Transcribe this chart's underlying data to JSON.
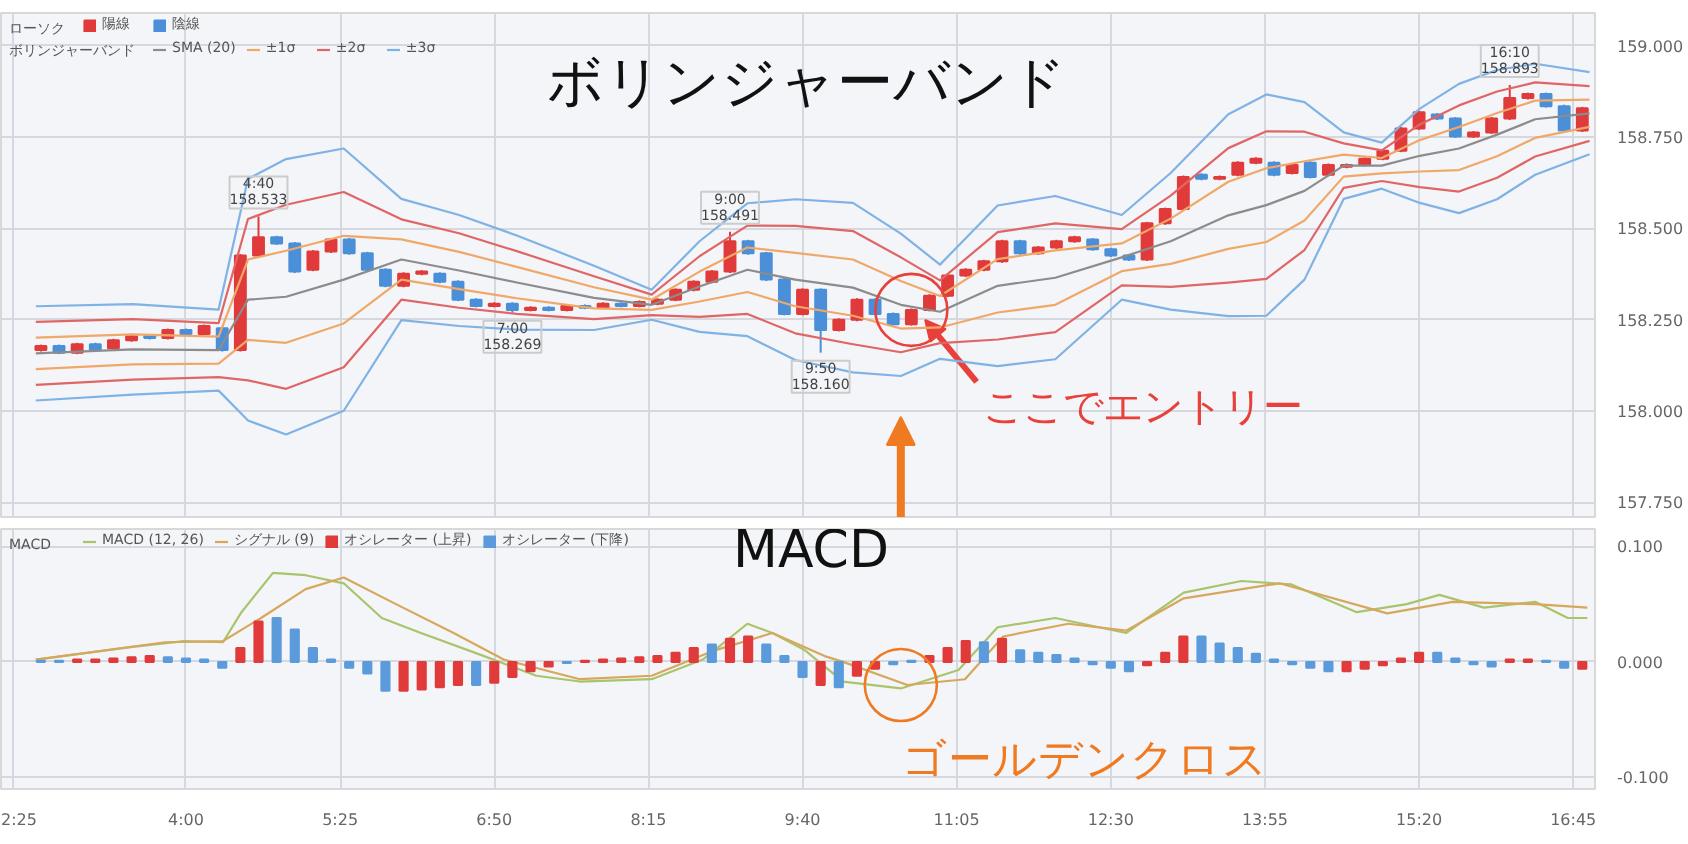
{
  "chart_data": [
    {
      "type": "candlestick",
      "title": "ボリンジャーバンド",
      "legend_title": [
        "ローソク",
        "ボリンジャーバンド"
      ],
      "legend": "top left",
      "grid": true,
      "tick_labels": "y",
      "xlim": [
        2.3,
        16.95
      ],
      "xticks": [
        {
          "value": 2.4167,
          "label": null
        },
        {
          "value": 4,
          "label": null
        },
        {
          "value": 5.4167,
          "label": null
        },
        {
          "value": 6.8333,
          "label": null
        },
        {
          "value": 8.25,
          "label": null
        },
        {
          "value": 9.6667,
          "label": null
        },
        {
          "value": 11.0833,
          "label": null
        },
        {
          "value": 12.5,
          "label": null
        },
        {
          "value": 13.9167,
          "label": null
        },
        {
          "value": 15.3333,
          "label": null
        },
        {
          "value": 16.75,
          "label": null
        }
      ],
      "ylim": [
        157.71,
        159.09
      ],
      "yticks": [
        {
          "value": 159,
          "label": "159.000"
        },
        {
          "value": 158.75,
          "label": "158.750"
        },
        {
          "value": 158.5,
          "label": "158.500"
        },
        {
          "value": 158.25,
          "label": "158.250"
        },
        {
          "value": 158,
          "label": "158.000"
        },
        {
          "value": 157.75,
          "label": "157.750"
        }
      ],
      "x": [
        2.62,
        3.51,
        4.3,
        4.57,
        4.92,
        5.45,
        5.98,
        6.51,
        7.04,
        7.75,
        8.28,
        8.72,
        9.16,
        9.6,
        10.13,
        10.57,
        10.93,
        11.46,
        11.99,
        12.6,
        13.05,
        13.58,
        13.93,
        14.28,
        14.64,
        14.99,
        15.34,
        15.7,
        16.05,
        16.4,
        16.9
      ],
      "series": [
        {
          "name": "陽線",
          "color": "#e03a3a",
          "x": [
            2.6667,
            3,
            3.3333,
            3.5,
            3.8333,
            4.1667,
            4.5,
            4.6667,
            5.1667,
            5.3333,
            6,
            6.1667,
            6.8333,
            7.1667,
            7.5,
            7.8333,
            8.1667,
            8.3333,
            8.5,
            8.6667,
            8.8333,
            9,
            9.6667,
            10,
            10.1667,
            10.6667,
            10.8333,
            11,
            11.1667,
            11.3333,
            11.5,
            11.8333,
            12,
            12.1667,
            12.8333,
            13,
            13.1667,
            13.5,
            13.6667,
            13.8333,
            14.1667,
            14.5,
            14.6667,
            14.8333,
            15,
            15.1667,
            15.3333,
            15.8333,
            16,
            16.1667,
            16.3333,
            16.8333
          ],
          "ohlc": [
            [
              158.167,
              158.182,
              158.163,
              158.178
            ],
            [
              158.16,
              158.187,
              158.156,
              158.183
            ],
            [
              158.172,
              158.198,
              158.168,
              158.194
            ],
            [
              158.194,
              158.209,
              158.19,
              158.205
            ],
            [
              158.2,
              158.226,
              158.196,
              158.222
            ],
            [
              158.211,
              158.237,
              158.207,
              158.233
            ],
            [
              158.167,
              158.43,
              158.163,
              158.426
            ],
            [
              158.426,
              158.533,
              158.422,
              158.476
            ],
            [
              158.387,
              158.441,
              158.383,
              158.437
            ],
            [
              158.437,
              158.474,
              158.433,
              158.47
            ],
            [
              158.343,
              158.38,
              158.339,
              158.376
            ],
            [
              158.376,
              158.386,
              158.372,
              158.382
            ],
            [
              158.288,
              158.298,
              158.284,
              158.294
            ],
            [
              158.277,
              158.287,
              158.273,
              158.283
            ],
            [
              158.277,
              158.292,
              158.273,
              158.288
            ],
            [
              158.283,
              158.298,
              158.279,
              158.294
            ],
            [
              158.288,
              158.303,
              158.284,
              158.299
            ],
            [
              158.294,
              158.309,
              158.29,
              158.305
            ],
            [
              158.305,
              158.336,
              158.301,
              158.332
            ],
            [
              158.332,
              158.358,
              158.328,
              158.354
            ],
            [
              158.354,
              158.386,
              158.35,
              158.382
            ],
            [
              158.382,
              158.491,
              158.378,
              158.465
            ],
            [
              158.266,
              158.336,
              158.262,
              158.332
            ],
            [
              158.222,
              158.254,
              158.218,
              158.25
            ],
            [
              158.25,
              158.309,
              158.246,
              158.305
            ],
            [
              158.238,
              158.281,
              158.234,
              158.277
            ],
            [
              158.277,
              158.32,
              158.273,
              158.316
            ],
            [
              158.316,
              158.375,
              158.312,
              158.371
            ],
            [
              158.371,
              158.391,
              158.367,
              158.387
            ],
            [
              158.387,
              158.414,
              158.383,
              158.41
            ],
            [
              158.41,
              158.469,
              158.406,
              158.465
            ],
            [
              158.432,
              158.452,
              158.428,
              158.448
            ],
            [
              158.448,
              158.469,
              158.444,
              158.465
            ],
            [
              158.465,
              158.48,
              158.461,
              158.476
            ],
            [
              158.415,
              158.518,
              158.411,
              158.514
            ],
            [
              158.514,
              158.557,
              158.51,
              158.553
            ],
            [
              158.553,
              158.645,
              158.549,
              158.641
            ],
            [
              158.636,
              158.645,
              158.632,
              158.641
            ],
            [
              158.647,
              158.684,
              158.643,
              158.68
            ],
            [
              158.68,
              158.695,
              158.676,
              158.691
            ],
            [
              158.652,
              158.678,
              158.648,
              158.674
            ],
            [
              158.647,
              158.678,
              158.643,
              158.674
            ],
            [
              158.669,
              158.678,
              158.665,
              158.674
            ],
            [
              158.674,
              158.695,
              158.67,
              158.691
            ],
            [
              158.691,
              158.717,
              158.687,
              158.713
            ],
            [
              158.713,
              158.778,
              158.709,
              158.774
            ],
            [
              158.774,
              158.822,
              158.77,
              158.818
            ],
            [
              158.752,
              158.767,
              158.748,
              158.763
            ],
            [
              158.763,
              158.805,
              158.759,
              158.801
            ],
            [
              158.801,
              158.893,
              158.797,
              158.857
            ],
            [
              158.857,
              158.872,
              158.853,
              158.868
            ],
            [
              158.768,
              158.833,
              158.764,
              158.829
            ]
          ]
        },
        {
          "name": "陰線",
          "color": "#4a8fd8",
          "x": [
            2.8333,
            3.1667,
            3.6667,
            4,
            4.3333,
            4.8333,
            5,
            5.5,
            5.6667,
            5.8333,
            6.3333,
            6.5,
            6.6667,
            7,
            7.3333,
            7.6667,
            8,
            9.1667,
            9.3333,
            9.5,
            9.8333,
            10.3333,
            10.5,
            11.6667,
            12.3333,
            12.5,
            12.6667,
            13.3333,
            14,
            14.3333,
            15.5,
            15.6667,
            16.5,
            16.6667
          ],
          "ohlc": [
            [
              158.178,
              158.182,
              158.156,
              158.16
            ],
            [
              158.183,
              158.187,
              158.163,
              158.167
            ],
            [
              158.205,
              158.209,
              158.196,
              158.2
            ],
            [
              158.222,
              158.226,
              158.207,
              158.211
            ],
            [
              158.227,
              158.231,
              158.163,
              158.167
            ],
            [
              158.476,
              158.48,
              158.455,
              158.459
            ],
            [
              158.459,
              158.463,
              158.378,
              158.382
            ],
            [
              158.47,
              158.474,
              158.428,
              158.432
            ],
            [
              158.432,
              158.436,
              158.383,
              158.387
            ],
            [
              158.387,
              158.391,
              158.339,
              158.343
            ],
            [
              158.376,
              158.38,
              158.35,
              158.354
            ],
            [
              158.354,
              158.358,
              158.301,
              158.305
            ],
            [
              158.305,
              158.309,
              158.284,
              158.288
            ],
            [
              158.294,
              158.298,
              158.269,
              158.277
            ],
            [
              158.283,
              158.287,
              158.273,
              158.277
            ],
            [
              158.288,
              158.292,
              158.279,
              158.283
            ],
            [
              158.294,
              158.298,
              158.284,
              158.288
            ],
            [
              158.465,
              158.469,
              158.428,
              158.432
            ],
            [
              158.432,
              158.436,
              158.356,
              158.36
            ],
            [
              158.36,
              158.364,
              158.262,
              158.266
            ],
            [
              158.332,
              158.336,
              158.16,
              158.222
            ],
            [
              158.305,
              158.309,
              158.262,
              158.266
            ],
            [
              158.266,
              158.27,
              158.234,
              158.238
            ],
            [
              158.465,
              158.469,
              158.428,
              158.432
            ],
            [
              158.47,
              158.474,
              158.439,
              158.443
            ],
            [
              158.443,
              158.447,
              158.422,
              158.426
            ],
            [
              158.426,
              158.43,
              158.411,
              158.415
            ],
            [
              158.647,
              158.651,
              158.632,
              158.636
            ],
            [
              158.68,
              158.684,
              158.643,
              158.647
            ],
            [
              158.68,
              158.684,
              158.637,
              158.641
            ],
            [
              158.812,
              158.816,
              158.797,
              158.801
            ],
            [
              158.801,
              158.805,
              158.748,
              158.752
            ],
            [
              158.868,
              158.872,
              158.831,
              158.835
            ],
            [
              158.835,
              158.839,
              158.764,
              158.768
            ]
          ]
        },
        {
          "type": "line",
          "name": "SMA (20)",
          "color": "#8c8c8c",
          "values": [
            158.158,
            158.169,
            158.167,
            158.305,
            158.313,
            158.36,
            158.415,
            158.385,
            158.352,
            158.31,
            158.291,
            158.341,
            158.387,
            158.36,
            158.338,
            158.291,
            158.272,
            158.343,
            158.365,
            158.421,
            158.465,
            158.536,
            158.564,
            158.603,
            158.672,
            158.672,
            158.699,
            158.719,
            158.757,
            158.799,
            158.815
          ]
        },
        {
          "type": "line",
          "name": "±1σ",
          "color": "#f0a868",
          "values": [
            158.201,
            158.21,
            158.204,
            158.415,
            158.439,
            158.48,
            158.47,
            158.436,
            158.395,
            158.339,
            158.305,
            158.382,
            158.448,
            158.433,
            158.415,
            158.356,
            158.315,
            158.416,
            158.44,
            158.459,
            158.527,
            158.628,
            158.665,
            158.684,
            158.702,
            158.693,
            158.742,
            158.778,
            158.816,
            158.85,
            158.853
          ]
        },
        {
          "type": "line",
          "color": "#f0a868",
          "values": [
            158.115,
            158.128,
            158.13,
            158.195,
            158.187,
            158.24,
            158.36,
            158.334,
            158.309,
            158.281,
            158.277,
            158.3,
            158.326,
            158.287,
            158.261,
            158.226,
            158.229,
            158.27,
            158.291,
            158.383,
            158.403,
            158.444,
            158.463,
            158.522,
            158.642,
            158.651,
            158.656,
            158.66,
            158.698,
            158.748,
            158.778
          ]
        },
        {
          "type": "line",
          "name": "±2σ",
          "color": "#e06666",
          "values": [
            158.244,
            158.252,
            158.241,
            158.526,
            158.565,
            158.6,
            158.525,
            158.487,
            158.438,
            158.369,
            158.319,
            158.424,
            158.508,
            158.507,
            158.493,
            158.421,
            158.358,
            158.49,
            158.514,
            158.498,
            158.59,
            158.72,
            158.766,
            158.765,
            158.733,
            158.714,
            158.785,
            158.837,
            158.875,
            158.9,
            158.89
          ]
        },
        {
          "type": "line",
          "color": "#e06666",
          "values": [
            158.072,
            158.086,
            158.093,
            158.084,
            158.061,
            158.12,
            158.305,
            158.283,
            158.266,
            158.252,
            158.263,
            158.258,
            158.266,
            158.213,
            158.183,
            158.161,
            158.186,
            158.196,
            158.216,
            158.344,
            158.34,
            158.352,
            158.362,
            158.441,
            158.611,
            158.63,
            158.613,
            158.601,
            158.639,
            158.697,
            158.74
          ]
        },
        {
          "type": "line",
          "name": "±3σ",
          "color": "#7fb2e5",
          "values": [
            158.287,
            158.293,
            158.278,
            158.636,
            158.69,
            158.719,
            158.581,
            158.537,
            158.481,
            158.398,
            158.332,
            158.465,
            158.569,
            158.58,
            158.57,
            158.486,
            158.401,
            158.563,
            158.589,
            158.537,
            158.652,
            158.813,
            158.867,
            158.846,
            158.763,
            158.735,
            158.828,
            158.896,
            158.934,
            158.951,
            158.928
          ]
        },
        {
          "type": "line",
          "color": "#7fb2e5",
          "values": [
            158.029,
            158.045,
            158.056,
            157.974,
            157.936,
            158.001,
            158.249,
            158.233,
            158.223,
            158.222,
            158.25,
            158.217,
            158.205,
            158.14,
            158.106,
            158.096,
            158.143,
            158.123,
            158.142,
            158.305,
            158.278,
            158.26,
            158.261,
            158.36,
            158.581,
            158.609,
            158.57,
            158.542,
            158.58,
            158.647,
            158.703
          ]
        }
      ],
      "annotations": [
        {
          "text": "4:40\n158.533",
          "x": 4.6667,
          "y": 158.533
        },
        {
          "text": "7:00\n158.269",
          "x": 7,
          "y": 158.269
        },
        {
          "text": "9:00\n158.491",
          "x": 9,
          "y": 158.491
        },
        {
          "text": "9:50\n158.160",
          "x": 9.8333,
          "y": 158.16
        },
        {
          "text": "16:10\n158.893",
          "x": 16.1667,
          "y": 158.893
        },
        {
          "text": "ここでエントリー",
          "x": 10.6667,
          "y": 158.277
        }
      ]
    },
    {
      "type": "bar",
      "title": "MACD",
      "legend_title": "MACD",
      "legend": "top left",
      "grid": true,
      "xlim": [
        2.3,
        16.95
      ],
      "xticks": [
        {
          "value": 2.4167,
          "label": "2:25"
        },
        {
          "value": 4,
          "label": "4:00"
        },
        {
          "value": 5.4167,
          "label": "5:25"
        },
        {
          "value": 6.8333,
          "label": "6:50"
        },
        {
          "value": 8.25,
          "label": "8:15"
        },
        {
          "value": 9.6667,
          "label": "9:40"
        },
        {
          "value": 11.0833,
          "label": "11:05"
        },
        {
          "value": 12.5,
          "label": "12:30"
        },
        {
          "value": 13.9167,
          "label": "13:55"
        },
        {
          "value": 15.3333,
          "label": "15:20"
        },
        {
          "value": 16.75,
          "label": "16:45"
        }
      ],
      "ylim": [
        -0.11,
        0.115
      ],
      "yticks": [
        {
          "value": 0.1,
          "label": "0.100"
        },
        {
          "value": 0,
          "label": "0.000"
        },
        {
          "value": -0.1,
          "label": "-0.100"
        }
      ],
      "x": [
        2.6667,
        2.8333,
        3,
        3.1667,
        3.3333,
        3.5,
        3.6667,
        3.8333,
        4,
        4.1667,
        4.3333,
        4.5,
        4.6667,
        4.8333,
        5,
        5.1667,
        5.3333,
        5.5,
        5.6667,
        5.8333,
        6,
        6.1667,
        6.3333,
        6.5,
        6.6667,
        6.8333,
        7,
        7.1667,
        7.3333,
        7.5,
        7.6667,
        7.8333,
        8,
        8.1667,
        8.3333,
        8.5,
        8.6667,
        8.8333,
        9,
        9.1667,
        9.3333,
        9.5,
        9.6667,
        9.8333,
        10,
        10.1667,
        10.3333,
        10.5,
        10.6667,
        10.8333,
        11,
        11.1667,
        11.3333,
        11.5,
        11.6667,
        11.8333,
        12,
        12.1667,
        12.3333,
        12.5,
        12.6667,
        12.8333,
        13,
        13.1667,
        13.3333,
        13.5,
        13.6667,
        13.8333,
        14,
        14.1667,
        14.3333,
        14.5,
        14.6667,
        14.8333,
        15,
        15.1667,
        15.3333,
        15.5,
        15.6667,
        15.8333,
        16,
        16.1667,
        16.3333,
        16.5,
        16.6667,
        16.8333
      ],
      "series": [
        {
          "type": "line",
          "name": "MACD (12, 26)",
          "color": "#a9c46c",
          "x": [
            2.62,
            3.51,
            3.98,
            4.34,
            4.51,
            4.8,
            5.1,
            5.45,
            5.8,
            6.16,
            6.74,
            7.22,
            7.62,
            8.28,
            8.75,
            9.16,
            9.39,
            9.69,
            10.04,
            10.57,
            11.1,
            11.46,
            11.99,
            12.64,
            13.17,
            13.7,
            14.16,
            14.76,
            15.22,
            15.52,
            15.93,
            16.4,
            16.7,
            16.88
          ],
          "values": [
            0.002,
            0.013,
            0.018,
            0.017,
            0.043,
            0.077,
            0.075,
            0.068,
            0.038,
            0.025,
            0.005,
            -0.012,
            -0.017,
            -0.015,
            0.002,
            0.033,
            0.025,
            0.01,
            -0.017,
            -0.023,
            -0.007,
            0.03,
            0.038,
            0.025,
            0.06,
            0.07,
            0.067,
            0.043,
            0.05,
            0.058,
            0.047,
            0.052,
            0.038,
            0.038
          ]
        },
        {
          "type": "line",
          "name": "シグナル (9)",
          "color": "#d6a75c",
          "x": [
            2.62,
            3.81,
            4.34,
            4.69,
            5.1,
            5.45,
            5.93,
            6.46,
            6.92,
            7.62,
            8.28,
            8.86,
            9.39,
            9.87,
            10.04,
            10.63,
            11.16,
            11.51,
            12.11,
            12.64,
            13.17,
            14.05,
            15.04,
            15.64,
            16.4,
            16.88
          ],
          "values": [
            0.002,
            0.017,
            0.018,
            0.038,
            0.063,
            0.073,
            0.05,
            0.025,
            0.002,
            -0.015,
            -0.012,
            0.01,
            0.025,
            0.005,
            0.0,
            -0.02,
            -0.015,
            0.022,
            0.033,
            0.027,
            0.055,
            0.068,
            0.042,
            0.052,
            0.05,
            0.047
          ]
        },
        {
          "name": "オシレーター (上昇)",
          "color": "#e03a3a",
          "values": [
            null,
            null,
            0.002,
            0.002,
            0.003,
            0.004,
            0.005,
            null,
            null,
            null,
            null,
            0.012,
            0.035,
            null,
            null,
            null,
            null,
            null,
            null,
            null,
            -0.025,
            -0.024,
            -0.022,
            -0.02,
            null,
            -0.018,
            -0.013,
            -0.008,
            -0.004,
            null,
            0.001,
            0.002,
            0.003,
            0.004,
            0.005,
            0.008,
            0.012,
            null,
            0.02,
            0.022,
            null,
            null,
            null,
            -0.02,
            null,
            -0.012,
            -0.006,
            null,
            null,
            0.005,
            0.012,
            0.018,
            null,
            0.02,
            null,
            null,
            null,
            null,
            null,
            null,
            null,
            -0.003,
            0.008,
            0.022,
            null,
            null,
            null,
            null,
            null,
            null,
            null,
            null,
            -0.008,
            -0.006,
            -0.003,
            0.003,
            0.008,
            null,
            null,
            null,
            null,
            0.002,
            0.002,
            null,
            null,
            -0.006
          ]
        },
        {
          "name": "オシレーター (下降)",
          "color": "#5b9bdc",
          "values": [
            0.001,
            0.001,
            null,
            null,
            null,
            null,
            null,
            0.004,
            0.003,
            0.002,
            -0.005,
            null,
            null,
            0.038,
            0.028,
            0.012,
            0.002,
            -0.005,
            -0.01,
            -0.025,
            null,
            null,
            null,
            null,
            -0.02,
            null,
            null,
            null,
            null,
            -0.001,
            null,
            null,
            null,
            null,
            null,
            null,
            null,
            0.015,
            null,
            null,
            0.015,
            0.005,
            -0.013,
            null,
            -0.022,
            null,
            null,
            -0.002,
            0.001,
            null,
            null,
            null,
            0.017,
            null,
            0.01,
            0.008,
            0.006,
            0.003,
            -0.002,
            -0.005,
            -0.008,
            null,
            null,
            null,
            0.022,
            0.016,
            0.012,
            0.007,
            0.002,
            -0.002,
            -0.005,
            -0.008,
            null,
            null,
            null,
            null,
            null,
            0.008,
            0.003,
            -0.002,
            -0.004,
            null,
            null,
            0.001,
            -0.005,
            null
          ]
        }
      ],
      "annotations": [
        {
          "text": "ゴールデンクロス",
          "x": 10.57,
          "y": -0.02
        }
      ]
    }
  ]
}
